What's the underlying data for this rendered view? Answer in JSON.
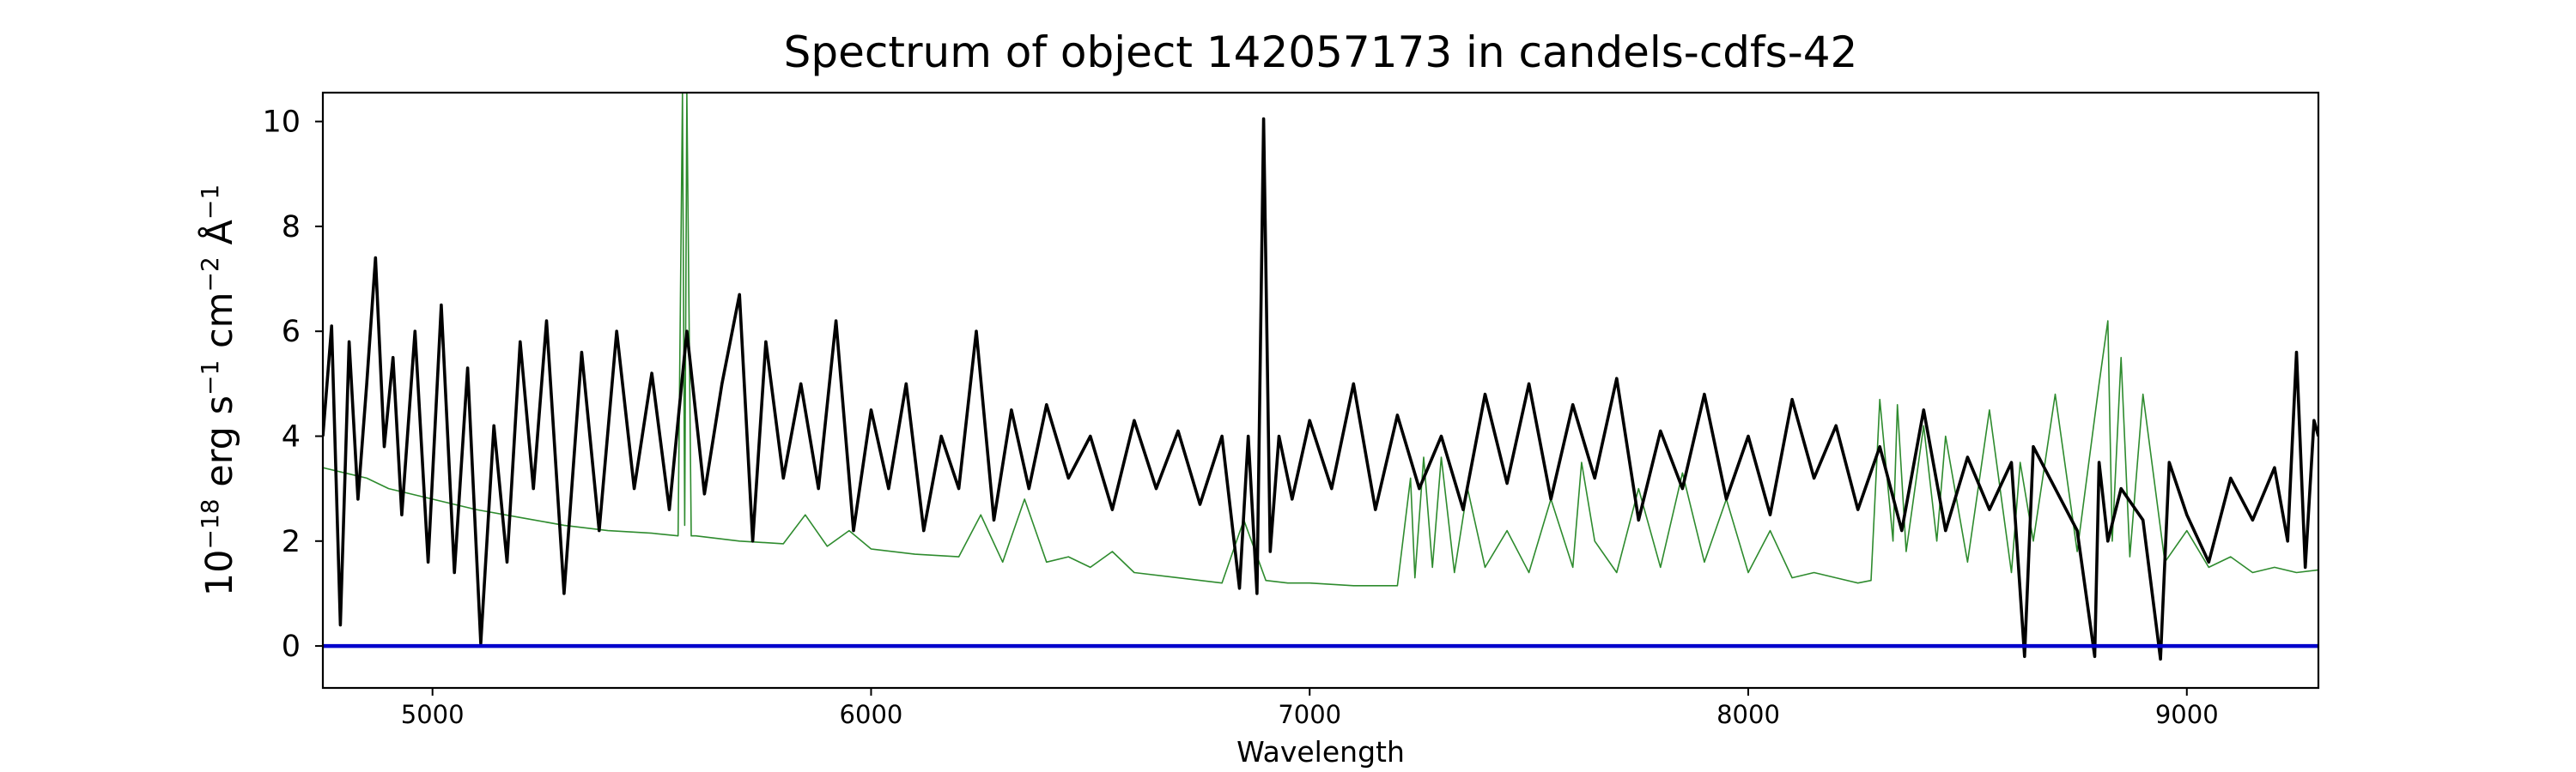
{
  "chart_data": {
    "type": "line",
    "title": "Spectrum of object 142057173 in candels-cdfs-42",
    "xlabel": "Wavelength",
    "ylabel": {
      "base": "10",
      "exp": "−18",
      "unit1": " erg s",
      "exp1": "−1",
      "unit2": " cm",
      "exp2": "−2",
      "unit3": " Å",
      "exp3": "−1"
    },
    "xlim": [
      4750,
      9300
    ],
    "ylim": [
      -0.8,
      10.55
    ],
    "xticks": [
      5000,
      6000,
      7000,
      8000,
      9000
    ],
    "yticks": [
      0,
      2,
      4,
      6,
      8,
      10
    ],
    "grid": false,
    "colors": {
      "flux": "#000000",
      "noise": "#2e8b2e",
      "zero": "#0000cc"
    },
    "series": [
      {
        "id": "flux",
        "x": [
          4750,
          4770,
          4790,
          4810,
          4830,
          4850,
          4870,
          4890,
          4910,
          4930,
          4960,
          4990,
          5020,
          5050,
          5080,
          5110,
          5140,
          5170,
          5200,
          5230,
          5260,
          5300,
          5340,
          5380,
          5420,
          5460,
          5500,
          5540,
          5580,
          5620,
          5660,
          5700,
          5730,
          5760,
          5800,
          5840,
          5880,
          5920,
          5960,
          6000,
          6040,
          6080,
          6120,
          6160,
          6200,
          6240,
          6280,
          6320,
          6360,
          6400,
          6450,
          6500,
          6550,
          6600,
          6650,
          6700,
          6750,
          6800,
          6840,
          6860,
          6880,
          6895,
          6910,
          6930,
          6960,
          7000,
          7050,
          7100,
          7150,
          7200,
          7250,
          7300,
          7350,
          7400,
          7450,
          7500,
          7550,
          7600,
          7650,
          7700,
          7750,
          7800,
          7850,
          7900,
          7950,
          8000,
          8050,
          8100,
          8150,
          8200,
          8250,
          8300,
          8350,
          8400,
          8450,
          8500,
          8550,
          8600,
          8630,
          8650,
          8700,
          8750,
          8790,
          8800,
          8820,
          8850,
          8900,
          8940,
          8960,
          9000,
          9050,
          9100,
          9150,
          9200,
          9230,
          9250,
          9270,
          9290,
          9300
        ],
        "y": [
          4.0,
          6.1,
          0.4,
          5.8,
          2.8,
          5.0,
          7.4,
          3.8,
          5.5,
          2.5,
          6.0,
          1.6,
          6.5,
          1.4,
          5.3,
          0.05,
          4.2,
          1.6,
          5.8,
          3.0,
          6.2,
          1.0,
          5.6,
          2.2,
          6.0,
          3.0,
          5.2,
          2.6,
          6.0,
          2.9,
          5.0,
          6.7,
          2.0,
          5.8,
          3.2,
          5.0,
          3.0,
          6.2,
          2.2,
          4.5,
          3.0,
          5.0,
          2.2,
          4.0,
          3.0,
          6.0,
          2.4,
          4.5,
          3.0,
          4.6,
          3.2,
          4.0,
          2.6,
          4.3,
          3.0,
          4.1,
          2.7,
          4.0,
          1.1,
          4.0,
          1.0,
          10.05,
          1.8,
          4.0,
          2.8,
          4.3,
          3.0,
          5.0,
          2.6,
          4.4,
          3.0,
          4.0,
          2.6,
          4.8,
          3.1,
          5.0,
          2.8,
          4.6,
          3.2,
          5.1,
          2.4,
          4.1,
          3.0,
          4.8,
          2.8,
          4.0,
          2.5,
          4.7,
          3.2,
          4.2,
          2.6,
          3.8,
          2.2,
          4.5,
          2.2,
          3.6,
          2.6,
          3.5,
          -0.2,
          3.8,
          3.0,
          2.2,
          -0.2,
          3.5,
          2.0,
          3.0,
          2.4,
          -0.25,
          3.5,
          2.5,
          1.6,
          3.2,
          2.4,
          3.4,
          2.0,
          5.6,
          1.5,
          4.3,
          4.0
        ]
      },
      {
        "id": "noise",
        "x": [
          4750,
          4800,
          4850,
          4900,
          5000,
          5100,
          5200,
          5300,
          5400,
          5500,
          5560,
          5570,
          5575,
          5580,
          5590,
          5600,
          5700,
          5800,
          5850,
          5900,
          5950,
          6000,
          6100,
          6200,
          6250,
          6300,
          6350,
          6400,
          6450,
          6500,
          6550,
          6600,
          6700,
          6800,
          6850,
          6900,
          6950,
          7000,
          7100,
          7200,
          7230,
          7240,
          7260,
          7280,
          7300,
          7330,
          7360,
          7400,
          7450,
          7500,
          7550,
          7600,
          7620,
          7650,
          7700,
          7750,
          7800,
          7850,
          7900,
          7950,
          8000,
          8050,
          8100,
          8150,
          8200,
          8250,
          8280,
          8300,
          8330,
          8340,
          8360,
          8400,
          8430,
          8450,
          8500,
          8550,
          8600,
          8620,
          8650,
          8700,
          8750,
          8800,
          8820,
          8830,
          8850,
          8870,
          8900,
          8950,
          9000,
          9050,
          9100,
          9150,
          9200,
          9250,
          9300
        ],
        "y": [
          3.4,
          3.3,
          3.2,
          3.0,
          2.8,
          2.6,
          2.45,
          2.3,
          2.2,
          2.15,
          2.1,
          10.55,
          2.3,
          10.55,
          2.1,
          2.1,
          2.0,
          1.95,
          2.5,
          1.9,
          2.2,
          1.85,
          1.75,
          1.7,
          2.5,
          1.6,
          2.8,
          1.6,
          1.7,
          1.5,
          1.8,
          1.4,
          1.3,
          1.2,
          2.4,
          1.25,
          1.2,
          1.2,
          1.15,
          1.15,
          3.2,
          1.3,
          3.6,
          1.5,
          3.6,
          1.4,
          3.0,
          1.5,
          2.2,
          1.4,
          2.8,
          1.5,
          3.5,
          2.0,
          1.4,
          3.0,
          1.5,
          3.3,
          1.6,
          2.8,
          1.4,
          2.2,
          1.3,
          1.4,
          1.3,
          1.2,
          1.25,
          4.7,
          2.0,
          4.6,
          1.8,
          4.2,
          2.0,
          4.0,
          1.6,
          4.5,
          1.4,
          3.5,
          2.0,
          4.8,
          1.8,
          5.0,
          6.2,
          2.0,
          5.5,
          1.7,
          4.8,
          1.6,
          2.2,
          1.5,
          1.7,
          1.4,
          1.5,
          1.4,
          1.45
        ]
      },
      {
        "id": "zero",
        "x": [
          4750,
          9300
        ],
        "y": [
          0,
          0
        ]
      }
    ]
  }
}
